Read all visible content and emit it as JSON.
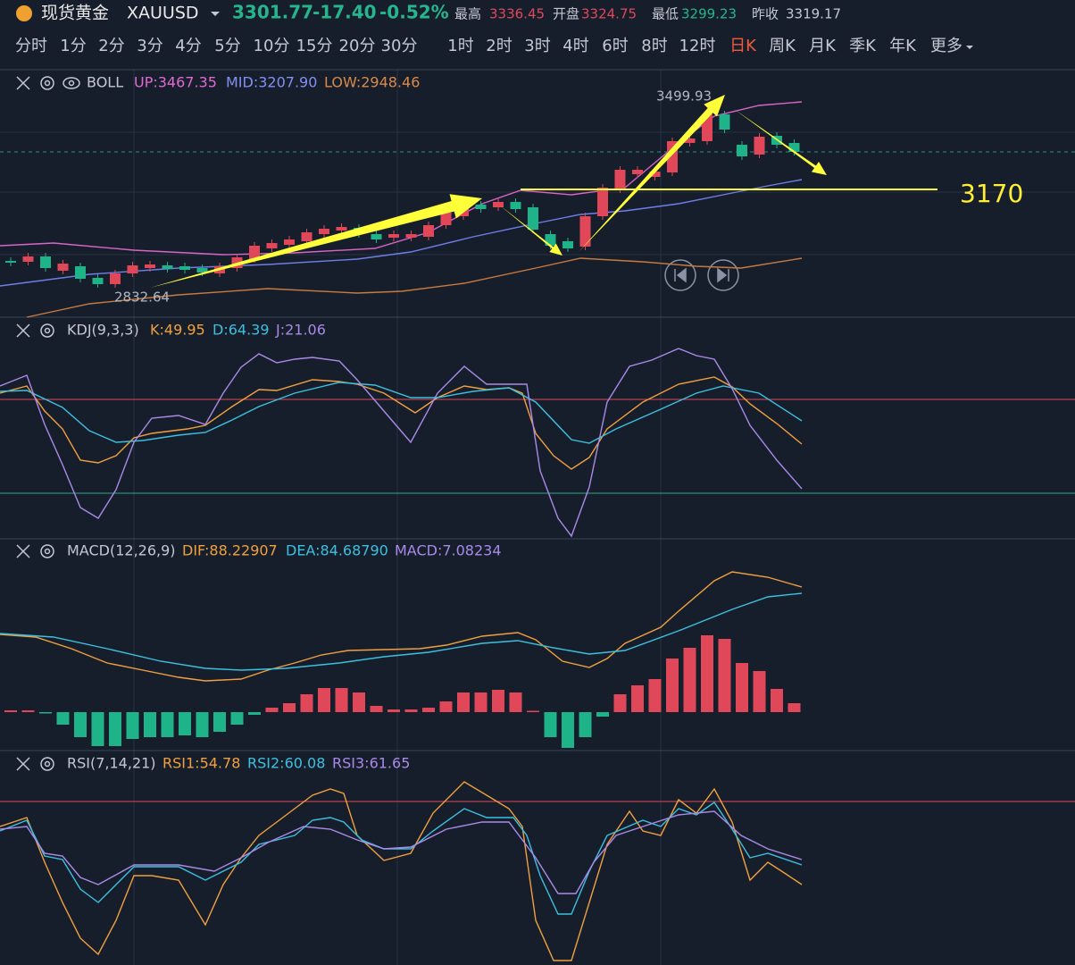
{
  "header": {
    "name": "现货黄金",
    "symbol": "XAUUSD",
    "price": "3301.77",
    "change": "-17.40",
    "change_pct": "-0.52%",
    "stats": [
      {
        "label": "最高",
        "value": "3336.45"
      },
      {
        "label": "开盘",
        "value": "3324.75"
      },
      {
        "label": "最低",
        "value": "3299.23"
      },
      {
        "label": "昨收",
        "value": "3319.17"
      }
    ]
  },
  "timeframes": [
    "分时",
    "1分",
    "2分",
    "3分",
    "4分",
    "5分",
    "10分",
    "15分",
    "20分",
    "30分",
    "1时",
    "2时",
    "3时",
    "4时",
    "6时",
    "8时",
    "12时",
    "日K",
    "周K",
    "月K",
    "季K",
    "年K",
    "更多"
  ],
  "selected_timeframe": 17,
  "boll": {
    "name": "BOLL",
    "up": "UP:3467.35",
    "mid": "MID:3207.90",
    "low": "LOW:2948.46",
    "high_label": "3499.93",
    "low_label": "2832.64",
    "level": "3170"
  },
  "kdj": {
    "name": "KDJ(9,3,3)",
    "k": "K:49.95",
    "d": "D:64.39",
    "j": "J:21.06"
  },
  "macd": {
    "name": "MACD(12,26,9)",
    "dif": "DIF:88.22907",
    "dea": "DEA:84.68790",
    "macd": "MACD:7.08234"
  },
  "rsi": {
    "name": "RSI(7,14,21)",
    "rsi1": "RSI1:54.78",
    "rsi2": "RSI2:60.08",
    "rsi3": "RSI3:61.65"
  }
}
